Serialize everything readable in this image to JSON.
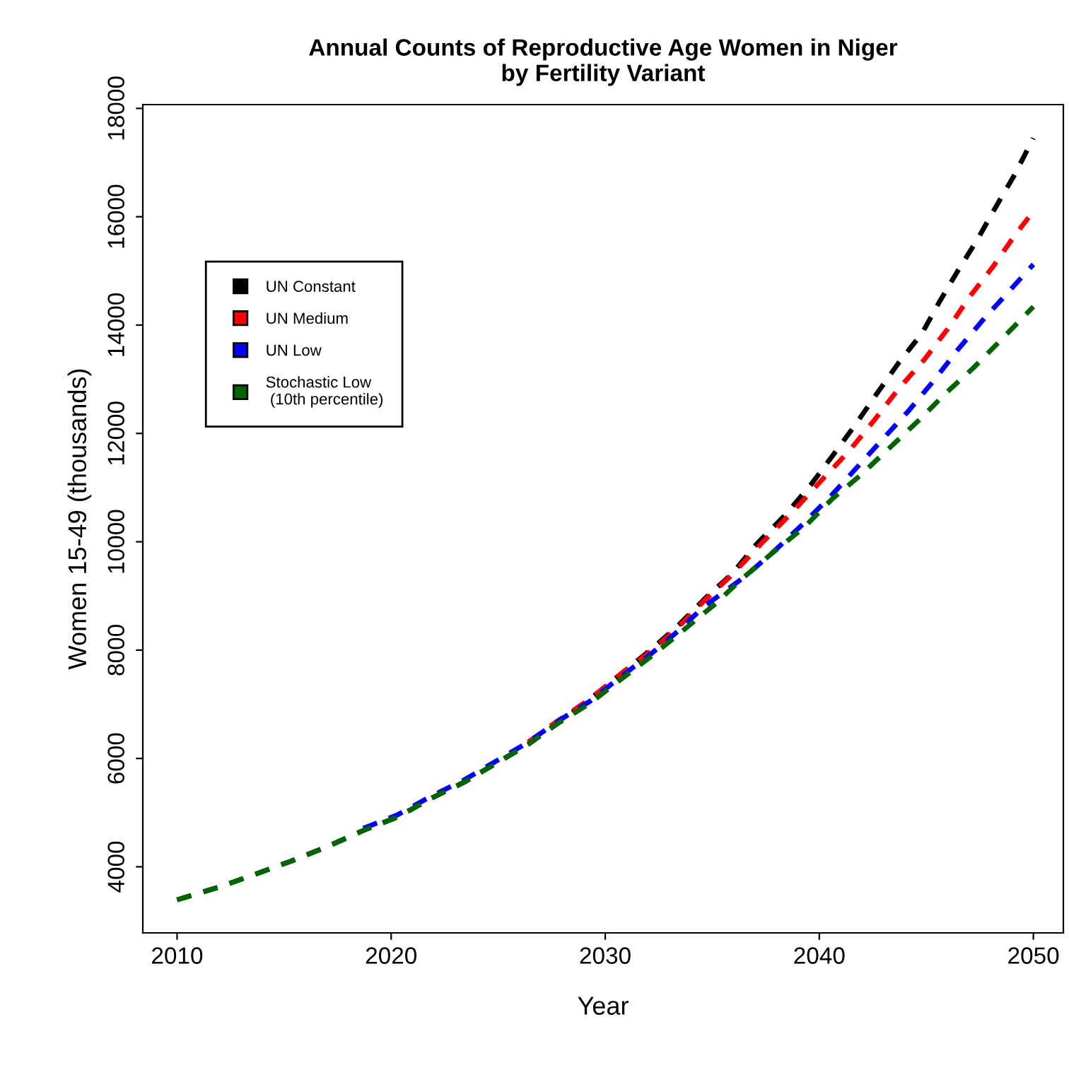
{
  "chart_data": {
    "type": "line",
    "title": "Annual Counts of Reproductive Age Women in Niger\nby Fertility Variant",
    "xlabel": "Year",
    "ylabel": "Women 15-49 (thousands)",
    "xlim": [
      2008.4,
      2051.4
    ],
    "ylim": [
      2780,
      18070
    ],
    "xticks": [
      2010,
      2020,
      2030,
      2040,
      2050
    ],
    "yticks": [
      4000,
      6000,
      8000,
      10000,
      12000,
      14000,
      16000,
      18000
    ],
    "grid": false,
    "legend": "top left",
    "line_style": "dashed",
    "marker": "none",
    "series": [
      {
        "name": "UN Constant",
        "color": "#000000",
        "x": [
          2010,
          2012,
          2013.7,
          2015.3,
          2017,
          2018.7,
          2020.3,
          2021.9,
          2023.4,
          2024.9,
          2026.4,
          2027.8,
          2029.3,
          2030.7,
          2032.2,
          2033.4,
          2034.6,
          2035.9,
          2037.1,
          2038.4,
          2039.6,
          2040.7,
          2041.7,
          2042.7,
          2043.7,
          2044.8,
          2045.6,
          2046.5,
          2047.4,
          2048.2,
          2049.1,
          2050
        ],
        "values": [
          3390,
          3630,
          3870,
          4100,
          4370,
          4670,
          4920,
          5270,
          5560,
          5910,
          6260,
          6660,
          7100,
          7550,
          8030,
          8450,
          8930,
          9400,
          9970,
          10490,
          11050,
          11630,
          12170,
          12740,
          13300,
          13850,
          14420,
          15020,
          15590,
          16150,
          16760,
          17450
        ]
      },
      {
        "name": "UN Medium",
        "color": "#ff0000",
        "x": [
          2026.4,
          2027.8,
          2029.3,
          2030.7,
          2032.2,
          2033.4,
          2034.6,
          2035.9,
          2037.3,
          2038.7,
          2040,
          2041.4,
          2042.6,
          2043.7,
          2044.9,
          2046,
          2047,
          2048.1,
          2049.1,
          2050
        ],
        "values": [
          6300,
          6700,
          7100,
          7550,
          8000,
          8420,
          8900,
          9380,
          9970,
          10530,
          11090,
          11680,
          12260,
          12820,
          13360,
          13930,
          14510,
          15070,
          15640,
          16100
        ]
      },
      {
        "name": "UN Low",
        "color": "#0000ff",
        "x": [
          2018.7,
          2020.3,
          2021.9,
          2023.4,
          2024.9,
          2026.4,
          2027.8,
          2029.3,
          2030.7,
          2032.2,
          2033.4,
          2034.6,
          2036.5,
          2037.9,
          2039.3,
          2040.6,
          2041.8,
          2043,
          2044.2,
          2045.4,
          2046.5,
          2047.7,
          2048.9,
          2050
        ],
        "values": [
          4710,
          4960,
          5310,
          5600,
          5950,
          6300,
          6690,
          7060,
          7500,
          7950,
          8350,
          8800,
          9350,
          9830,
          10350,
          10870,
          11390,
          11910,
          12430,
          13000,
          13560,
          14120,
          14640,
          15120
        ]
      },
      {
        "name": "Stochastic Low\n (10th percentile)",
        "color": "#006400",
        "x": [
          2010,
          2012,
          2013.7,
          2015.3,
          2017,
          2018.7,
          2020.3,
          2021.9,
          2023.4,
          2024.9,
          2026.4,
          2027.8,
          2029.3,
          2030.7,
          2032.2,
          2033.6,
          2035.1,
          2036.4,
          2037.8,
          2039.3,
          2040.6,
          2041.9,
          2043.3,
          2044.7,
          2045.9,
          2047.2,
          2048.4,
          2050
        ],
        "values": [
          3390,
          3630,
          3870,
          4100,
          4370,
          4670,
          4920,
          5270,
          5560,
          5910,
          6260,
          6650,
          7020,
          7450,
          7900,
          8350,
          8840,
          9320,
          9790,
          10270,
          10790,
          11220,
          11740,
          12260,
          12740,
          13210,
          13690,
          14340
        ]
      }
    ]
  }
}
